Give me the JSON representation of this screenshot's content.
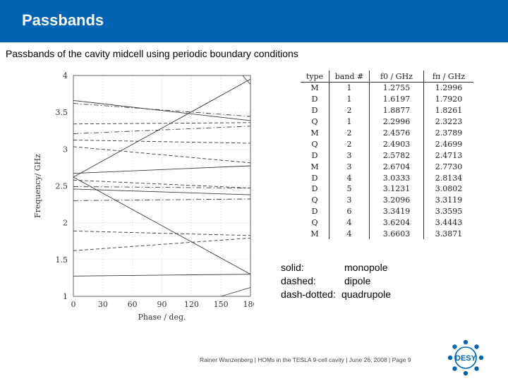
{
  "header": {
    "title": "Passbands"
  },
  "subtitle": "Passbands of the cavity midcell using periodic boundary conditions",
  "legend": [
    {
      "key": "solid:",
      "value": "monopole"
    },
    {
      "key": "dashed:",
      "value": "dipole"
    },
    {
      "key": "dash-dotted:",
      "value": "quadrupole"
    }
  ],
  "table": {
    "headers": [
      "type",
      "band #",
      "f0 / GHz",
      "fπ / GHz"
    ],
    "rows": [
      [
        "M",
        "1",
        "1.2755",
        "1.2996"
      ],
      [
        "D",
        "1",
        "1.6197",
        "1.7920"
      ],
      [
        "D",
        "2",
        "1.8877",
        "1.8261"
      ],
      [
        "Q",
        "1",
        "2.2996",
        "2.3223"
      ],
      [
        "M",
        "2",
        "2.4576",
        "2.3789"
      ],
      [
        "Q",
        "2",
        "2.4903",
        "2.4699"
      ],
      [
        "D",
        "3",
        "2.5782",
        "2.4713"
      ],
      [
        "M",
        "3",
        "2.6704",
        "2.7730"
      ],
      [
        "D",
        "4",
        "3.0333",
        "2.8134"
      ],
      [
        "D",
        "5",
        "3.1231",
        "3.0802"
      ],
      [
        "Q",
        "3",
        "3.2096",
        "3.3119"
      ],
      [
        "D",
        "6",
        "3.3419",
        "3.3595"
      ],
      [
        "Q",
        "4",
        "3.6204",
        "3.4443"
      ],
      [
        "M",
        "4",
        "3.6603",
        "3.3871"
      ]
    ]
  },
  "footer": "Rainer Wanzenberg  |  HOMs in the TESLA 9-cell cavity  |  June 26, 2008  |  Page 9",
  "logo_text": "DESY",
  "colors": {
    "header": "#0064b4",
    "logo": "#0064b4"
  },
  "chart_data": {
    "type": "line",
    "xlabel": "Phase / deg.",
    "ylabel": "Frequency/ GHz",
    "xlim": [
      0,
      180
    ],
    "ylim": [
      1,
      4
    ],
    "xticks": [
      0,
      30,
      60,
      90,
      120,
      150,
      180
    ],
    "yticks": [
      1,
      1.5,
      2,
      2.5,
      3,
      3.5,
      4
    ],
    "series": [
      {
        "style": "solid",
        "x": [
          0,
          180
        ],
        "y": [
          1.2755,
          1.2996
        ]
      },
      {
        "style": "solid",
        "x": [
          0,
          180
        ],
        "y": [
          2.4576,
          2.3789
        ]
      },
      {
        "style": "solid",
        "x": [
          0,
          180
        ],
        "y": [
          2.6704,
          2.773
        ]
      },
      {
        "style": "solid",
        "x": [
          0,
          180
        ],
        "y": [
          3.6603,
          3.3871
        ]
      },
      {
        "style": "solid",
        "x": [
          0,
          180
        ],
        "y": [
          2.62,
          3.95
        ]
      },
      {
        "style": "solid",
        "x": [
          0,
          180
        ],
        "y": [
          2.62,
          1.3
        ]
      },
      {
        "style": "solid",
        "x": [
          150,
          180
        ],
        "y": [
          1.0,
          1.12
        ]
      },
      {
        "style": "solid",
        "x": [
          172,
          180
        ],
        "y": [
          4.0,
          3.88
        ]
      },
      {
        "style": "dashed",
        "x": [
          0,
          180
        ],
        "y": [
          1.6197,
          1.792
        ]
      },
      {
        "style": "dashed",
        "x": [
          0,
          180
        ],
        "y": [
          1.8877,
          1.8261
        ]
      },
      {
        "style": "dashed",
        "x": [
          0,
          180
        ],
        "y": [
          2.5782,
          2.4713
        ]
      },
      {
        "style": "dashed",
        "x": [
          0,
          180
        ],
        "y": [
          3.0333,
          2.8134
        ]
      },
      {
        "style": "dashed",
        "x": [
          0,
          180
        ],
        "y": [
          3.1231,
          3.0802
        ]
      },
      {
        "style": "dashed",
        "x": [
          0,
          180
        ],
        "y": [
          3.3419,
          3.3595
        ]
      },
      {
        "style": "dash-dotted",
        "x": [
          0,
          180
        ],
        "y": [
          2.2996,
          2.3223
        ]
      },
      {
        "style": "dash-dotted",
        "x": [
          0,
          180
        ],
        "y": [
          2.4903,
          2.4699
        ]
      },
      {
        "style": "dash-dotted",
        "x": [
          0,
          180
        ],
        "y": [
          3.2096,
          3.3119
        ]
      },
      {
        "style": "dash-dotted",
        "x": [
          0,
          180
        ],
        "y": [
          3.6204,
          3.4443
        ]
      }
    ]
  }
}
